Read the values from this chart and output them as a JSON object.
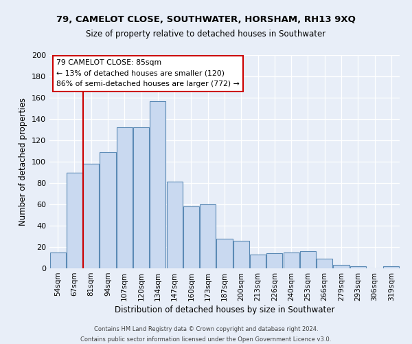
{
  "title1": "79, CAMELOT CLOSE, SOUTHWATER, HORSHAM, RH13 9XQ",
  "title2": "Size of property relative to detached houses in Southwater",
  "xlabel": "Distribution of detached houses by size in Southwater",
  "ylabel": "Number of detached properties",
  "bar_labels": [
    "54sqm",
    "67sqm",
    "81sqm",
    "94sqm",
    "107sqm",
    "120sqm",
    "134sqm",
    "147sqm",
    "160sqm",
    "173sqm",
    "187sqm",
    "200sqm",
    "213sqm",
    "226sqm",
    "240sqm",
    "253sqm",
    "266sqm",
    "279sqm",
    "293sqm",
    "306sqm",
    "319sqm"
  ],
  "bar_values": [
    15,
    90,
    98,
    109,
    132,
    132,
    157,
    81,
    58,
    60,
    28,
    26,
    13,
    14,
    15,
    16,
    9,
    3,
    2,
    0,
    2
  ],
  "bar_color": "#c9d9f0",
  "bar_edge_color": "#5b8ab5",
  "vline_x_index": 2,
  "vline_color": "#cc0000",
  "annotation_text": "79 CAMELOT CLOSE: 85sqm\n← 13% of detached houses are smaller (120)\n86% of semi-detached houses are larger (772) →",
  "annotation_box_edge": "#cc0000",
  "ylim": [
    0,
    200
  ],
  "yticks": [
    0,
    20,
    40,
    60,
    80,
    100,
    120,
    140,
    160,
    180,
    200
  ],
  "footer1": "Contains HM Land Registry data © Crown copyright and database right 2024.",
  "footer2": "Contains public sector information licensed under the Open Government Licence v3.0.",
  "bg_color": "#e8eef8",
  "grid_color": "#d0d8e8"
}
